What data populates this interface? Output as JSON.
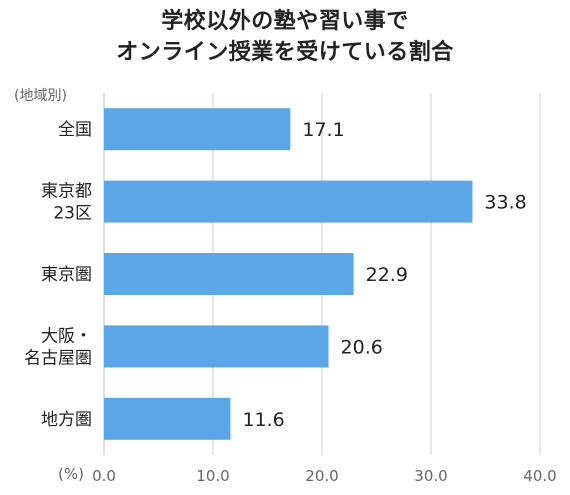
{
  "chart_data": {
    "type": "bar",
    "orientation": "horizontal",
    "title_lines": [
      "学校以外の塾や習い事で",
      "オンライン授業を受けている割合"
    ],
    "region_note": "(地域別)",
    "unit_label": "(%)",
    "categories": [
      [
        "全国"
      ],
      [
        "東京都",
        "23区"
      ],
      [
        "東京圏"
      ],
      [
        "大阪・",
        "名古屋圏"
      ],
      [
        "地方圏"
      ]
    ],
    "values": [
      17.1,
      33.8,
      22.9,
      20.6,
      11.6
    ],
    "value_labels": [
      "17.1",
      "33.8",
      "22.9",
      "20.6",
      "11.6"
    ],
    "xlim": [
      0,
      40
    ],
    "ticks": [
      0,
      10,
      20,
      30,
      40
    ],
    "tick_labels": [
      "0.0",
      "10.0",
      "20.0",
      "30.0",
      "40.0"
    ],
    "grid": "vertical",
    "colors": {
      "bar": "#5aa6e6",
      "grid": "#cccccc",
      "axis": "#bbbbbb"
    }
  }
}
